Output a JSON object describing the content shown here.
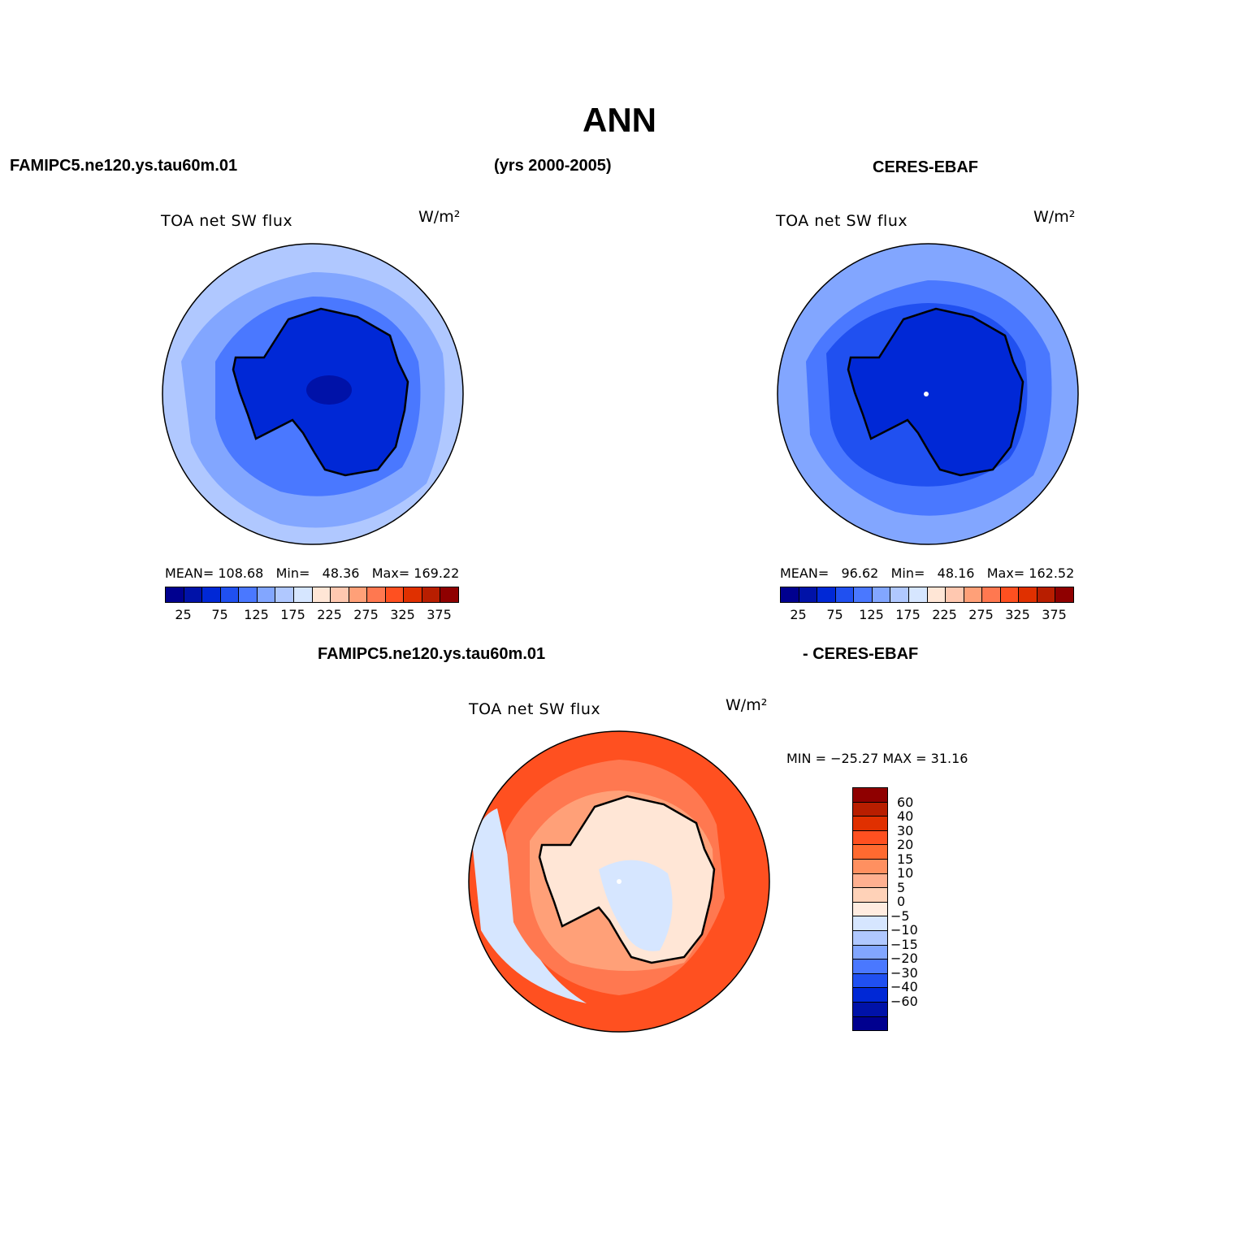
{
  "title": "ANN",
  "header": {
    "model_name": "FAMIPC5.ne120.ys.tau60m.01",
    "years": "(yrs 2000-2005)",
    "obs_name": "CERES-EBAF"
  },
  "panels": [
    {
      "var_title": "TOA net SW flux",
      "units": "W/m²",
      "stats": {
        "mean_label": "MEAN=",
        "mean": "108.68",
        "min_label": "Min=",
        "min": "48.36",
        "max_label": "Max=",
        "max": "169.22"
      }
    },
    {
      "var_title": "TOA net SW flux",
      "units": "W/m²",
      "stats": {
        "mean_label": "MEAN=",
        "mean": "96.62",
        "min_label": "Min=",
        "min": "48.16",
        "max_label": "Max=",
        "max": "162.52"
      }
    }
  ],
  "colorbar_fields": {
    "colors": [
      "#00008f",
      "#0012a8",
      "#0028d6",
      "#2050f0",
      "#4a78ff",
      "#82a6ff",
      "#b0c8ff",
      "#d6e6ff",
      "#ffe6d6",
      "#ffc8b0",
      "#ffa078",
      "#ff7850",
      "#ff5020",
      "#e03000",
      "#b81e00",
      "#8f0000"
    ],
    "tick_labels": [
      "25",
      "75",
      "125",
      "175",
      "225",
      "275",
      "325",
      "375"
    ]
  },
  "diff_header": {
    "left": "FAMIPC5.ne120.ys.tau60m.01",
    "right": "- CERES-EBAF"
  },
  "diff_panel": {
    "var_title": "TOA net SW flux",
    "units": "W/m²",
    "minmax": "MIN = −25.27 MAX =   31.16"
  },
  "colorbar_diff": {
    "colors_top_to_bottom": [
      "#8f0000",
      "#b81e00",
      "#e03000",
      "#ff5020",
      "#ff6a30",
      "#ff9060",
      "#ffb090",
      "#ffd2b8",
      "#ffece0",
      "#d6e6ff",
      "#b0c8ff",
      "#82a6ff",
      "#4a78ff",
      "#2050f0",
      "#0028d6",
      "#0012a8",
      "#00008f"
    ],
    "tick_labels_top_to_bottom": [
      "60",
      "40",
      "30",
      "20",
      "15",
      "10",
      "5",
      "0",
      "−5",
      "−10",
      "−15",
      "−20",
      "−30",
      "−40",
      "−60"
    ]
  },
  "map_colors": {
    "field_outer": "#b0c8ff",
    "field_mid": "#82a6ff",
    "field_inner": "#4a78ff",
    "field_ring": "#2050f0",
    "field_continent": "#0028d6",
    "field_core": "#0012a8",
    "diff_outer": "#ff5020",
    "diff_mid": "#ff7850",
    "diff_inner": "#ffa078",
    "diff_coast": "#ffe6d6",
    "diff_neg": "#d6e6ff"
  }
}
